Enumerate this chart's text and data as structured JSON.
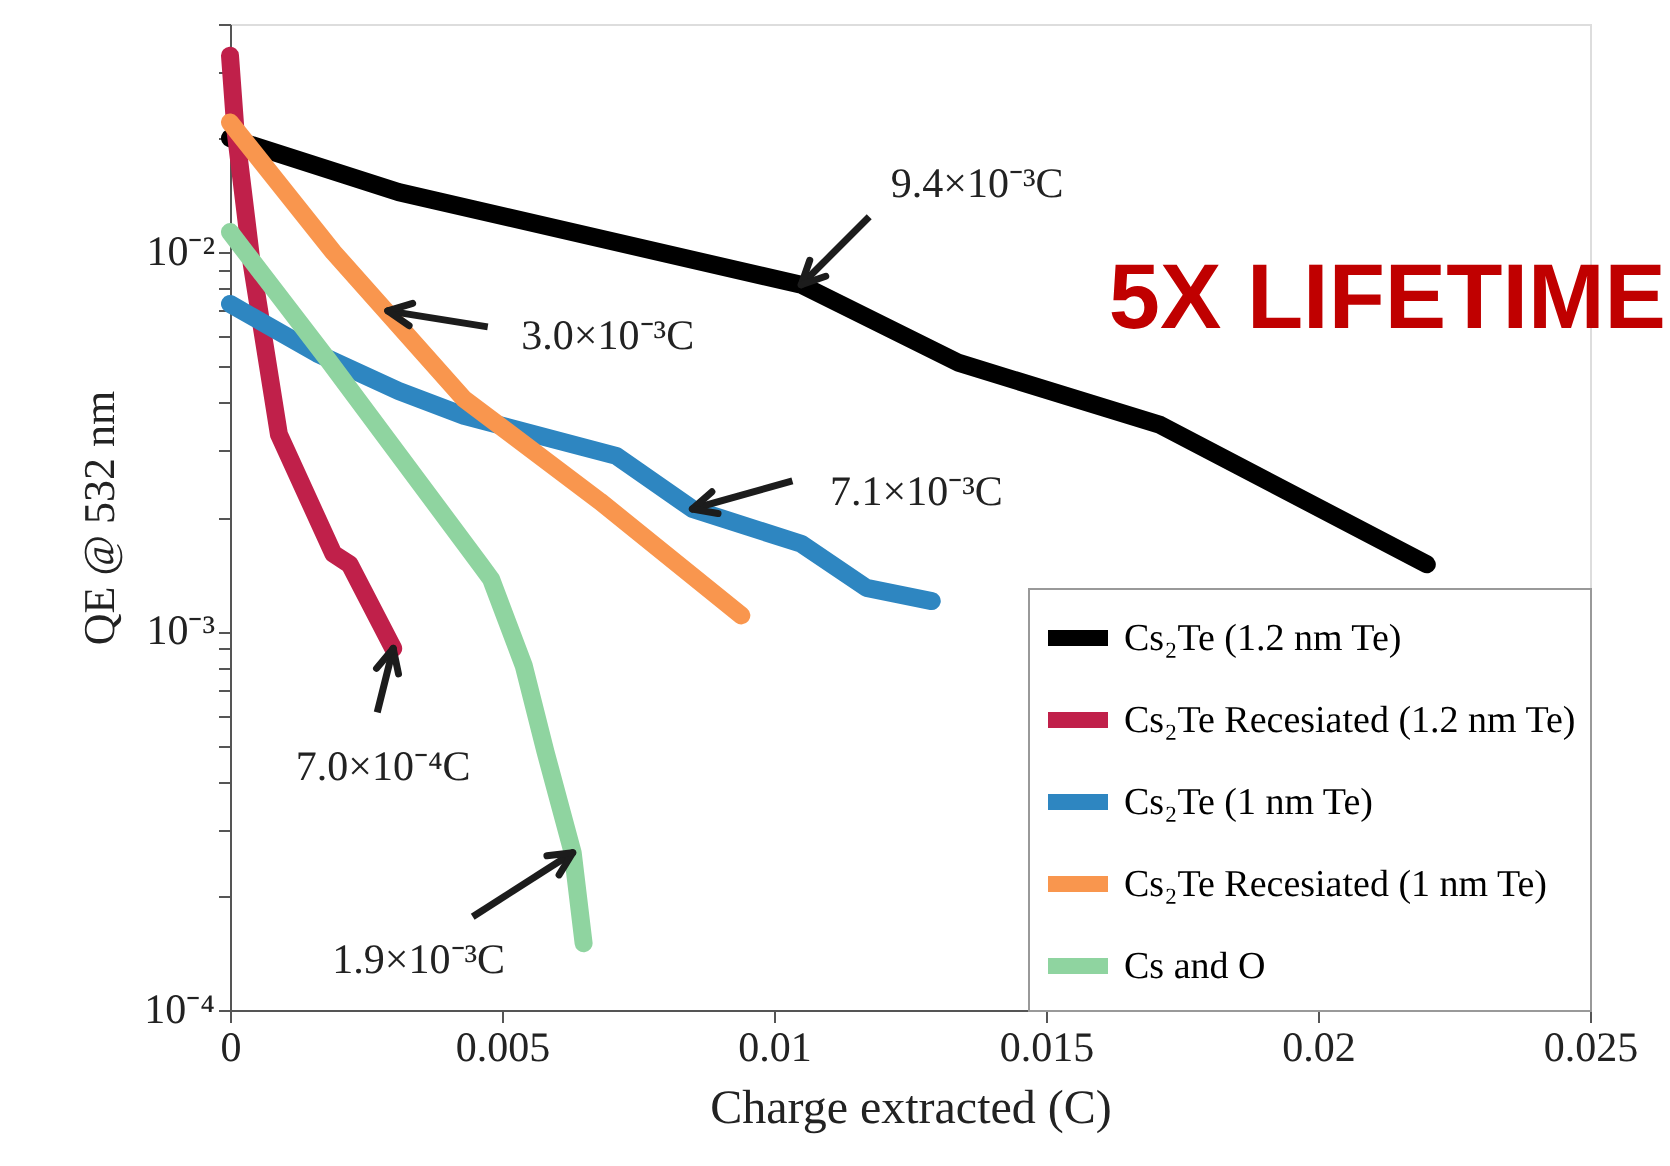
{
  "chart_data": {
    "type": "line",
    "xlabel": "Charge extracted (C)",
    "ylabel": "QE @ 532 nm",
    "series": [
      {
        "name": "Cs₂Te (1.2 nm Te)",
        "color": "#000000",
        "x": [
          0,
          0.0031,
          0.0105,
          0.0134,
          0.0171,
          0.022
        ],
        "values": [
          0.02,
          0.0144,
          0.0082,
          0.0051,
          0.0035,
          0.0015
        ]
      },
      {
        "name": "Cs₂Te Recesiated (1.2 nm Te)",
        "color": "#c0204a",
        "x": [
          0,
          0.0001,
          0.0004,
          0.0009,
          0.0019,
          0.0022,
          0.003
        ],
        "values": [
          0.033,
          0.021,
          0.0093,
          0.0033,
          0.0016,
          0.0015,
          0.0009
        ]
      },
      {
        "name": "Cs₂Te (1 nm Te)",
        "color": "#2e86c1",
        "x": [
          0,
          0.0016,
          0.0031,
          0.0043,
          0.0071,
          0.0085,
          0.0105,
          0.0117,
          0.0129
        ],
        "values": [
          0.0073,
          0.0054,
          0.0043,
          0.0037,
          0.0029,
          0.0021,
          0.0017,
          0.0013,
          0.0012
        ]
      },
      {
        "name": "Cs₂Te Recesiated (1 nm Te)",
        "color": "#f9964e",
        "x": [
          0,
          0.0019,
          0.0043,
          0.0068,
          0.0094
        ],
        "values": [
          0.022,
          0.01,
          0.0041,
          0.0022,
          0.0011
        ]
      },
      {
        "name": "Cs and O",
        "color": "#8fd4a0",
        "x": [
          0,
          0.0018,
          0.0046,
          0.0048,
          0.0054,
          0.0058,
          0.0063,
          0.0065
        ],
        "values": [
          0.0113,
          0.0052,
          0.0015,
          0.00137,
          0.00081,
          0.00048,
          0.00026,
          0.00015
        ]
      }
    ],
    "log": "y",
    "xlim": [
      0,
      0.025
    ],
    "xticks": [
      0,
      0.005,
      0.01,
      0.015,
      0.02,
      0.025
    ],
    "ylim": [
      0.0001,
      0.04
    ],
    "yticks": [
      {
        "value": 0.0001,
        "label": "10⁻⁴"
      },
      {
        "value": 0.0002,
        "label": null
      },
      {
        "value": 0.0003,
        "label": null
      },
      {
        "value": 0.0004,
        "label": null
      },
      {
        "value": 0.0005,
        "label": null
      },
      {
        "value": 0.0006,
        "label": null
      },
      {
        "value": 0.0007,
        "label": null
      },
      {
        "value": 0.0008,
        "label": null
      },
      {
        "value": 0.0009,
        "label": null
      },
      {
        "value": 0.001,
        "label": "10⁻³"
      },
      {
        "value": 0.002,
        "label": null
      },
      {
        "value": 0.003,
        "label": null
      },
      {
        "value": 0.004,
        "label": null
      },
      {
        "value": 0.005,
        "label": null
      },
      {
        "value": 0.006,
        "label": null
      },
      {
        "value": 0.007,
        "label": null
      },
      {
        "value": 0.008,
        "label": null
      },
      {
        "value": 0.009,
        "label": null
      },
      {
        "value": 0.01,
        "label": "10⁻²"
      },
      {
        "value": 0.02,
        "label": null
      },
      {
        "value": 0.03,
        "label": null
      },
      {
        "value": 0.04,
        "label": null
      }
    ],
    "grid": false,
    "legend": "bottom right",
    "marker": "none",
    "line_style": "solid",
    "annotations": [
      {
        "text": "9.4×10⁻³C",
        "x": 0.0105,
        "y": 0.0082
      },
      {
        "text": "3.0×10⁻³C",
        "x": 0.0029,
        "y": 0.007
      },
      {
        "text": "7.1×10⁻³C",
        "x": 0.0085,
        "y": 0.0021
      },
      {
        "text": "7.0×10⁻⁴C",
        "x": 0.003,
        "y": 0.0009
      },
      {
        "text": "1.9×10⁻³C",
        "x": 0.0063,
        "y": 0.00026
      },
      "5X LIFETIME"
    ]
  }
}
